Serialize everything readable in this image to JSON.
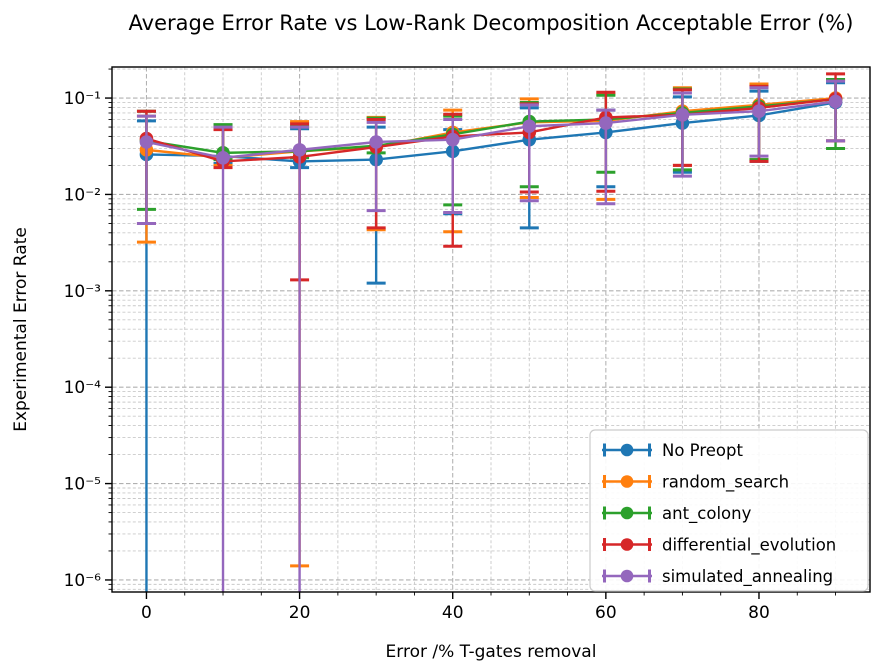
{
  "chart_data": {
    "type": "line",
    "title": "Average Error Rate vs Low-Rank Decomposition Acceptable Error (%)",
    "xlabel": "Error /% T-gates removal",
    "ylabel": "Experimental Error Rate",
    "yscale": "log",
    "xlim": [
      -4.5,
      94.5
    ],
    "ylim": [
      7.5e-07,
      0.21
    ],
    "xticks": [
      0,
      20,
      40,
      60,
      80
    ],
    "x_minor_tick_step": 5,
    "yticks": [
      0.1,
      0.01,
      0.001,
      0.0001,
      1e-05,
      1e-06
    ],
    "ytick_labels": [
      "10⁻¹",
      "10⁻²",
      "10⁻³",
      "10⁻⁴",
      "10⁻⁵",
      "10⁻⁶"
    ],
    "grid": "major and minor, dashed grey",
    "legend_position": "lower right",
    "marker": "circle with errorbar caps",
    "x": [
      0,
      10,
      20,
      30,
      40,
      50,
      60,
      70,
      80,
      90
    ],
    "series": [
      {
        "name": "No Preopt",
        "color": "#1f77b4",
        "y": [
          0.026,
          0.025,
          0.022,
          0.023,
          0.028,
          0.037,
          0.044,
          0.055,
          0.066,
          0.09
        ],
        "lo": [
          null,
          0.021,
          0.019,
          0.0012,
          0.0063,
          0.0045,
          0.012,
          0.017,
          0.022,
          0.036
        ],
        "hi": [
          0.058,
          0.05,
          0.048,
          0.05,
          0.047,
          0.079,
          0.075,
          0.103,
          0.118,
          0.144
        ]
      },
      {
        "name": "random_search",
        "color": "#ff7f0e",
        "y": [
          0.029,
          0.024,
          0.028,
          0.031,
          0.044,
          0.056,
          0.058,
          0.073,
          0.085,
          0.1
        ],
        "lo": [
          0.0032,
          0.02,
          1.4e-06,
          0.0043,
          0.0041,
          0.0093,
          0.0089,
          0.02,
          0.023,
          0.036
        ],
        "hi": [
          0.065,
          0.051,
          0.057,
          0.063,
          0.075,
          0.098,
          0.11,
          0.128,
          0.14,
          0.156
        ]
      },
      {
        "name": "ant_colony",
        "color": "#2ca02c",
        "y": [
          0.036,
          0.027,
          0.028,
          0.032,
          0.042,
          0.057,
          0.06,
          0.07,
          0.082,
          0.097
        ],
        "lo": [
          0.007,
          0.023,
          0.024,
          0.027,
          0.0078,
          0.012,
          0.017,
          0.018,
          0.023,
          0.03
        ],
        "hi": [
          0.073,
          0.053,
          0.051,
          0.062,
          0.065,
          0.09,
          0.107,
          0.124,
          0.132,
          0.156
        ]
      },
      {
        "name": "differential_evolution",
        "color": "#d62728",
        "y": [
          0.038,
          0.022,
          0.0245,
          0.031,
          0.04,
          0.044,
          0.063,
          0.067,
          0.079,
          0.098
        ],
        "lo": [
          0.005,
          0.019,
          0.0013,
          0.0045,
          0.0029,
          0.0106,
          0.0108,
          0.02,
          0.022,
          0.036
        ],
        "hi": [
          0.073,
          0.047,
          0.054,
          0.06,
          0.068,
          0.087,
          0.115,
          0.122,
          0.132,
          0.178
        ]
      },
      {
        "name": "simulated_annealing",
        "color": "#9467bd",
        "y": [
          0.035,
          0.024,
          0.029,
          0.035,
          0.037,
          0.051,
          0.055,
          0.067,
          0.073,
          0.092
        ],
        "lo": [
          0.005,
          null,
          null,
          0.0068,
          0.0065,
          0.0086,
          0.008,
          0.0155,
          0.025,
          0.036
        ],
        "hi": [
          0.065,
          0.05,
          0.05,
          0.056,
          0.06,
          0.085,
          0.075,
          0.113,
          0.128,
          0.15
        ]
      }
    ],
    "note_null_lo": "null lower bound = error bar extends below the bottom of the axis (clipped)"
  }
}
